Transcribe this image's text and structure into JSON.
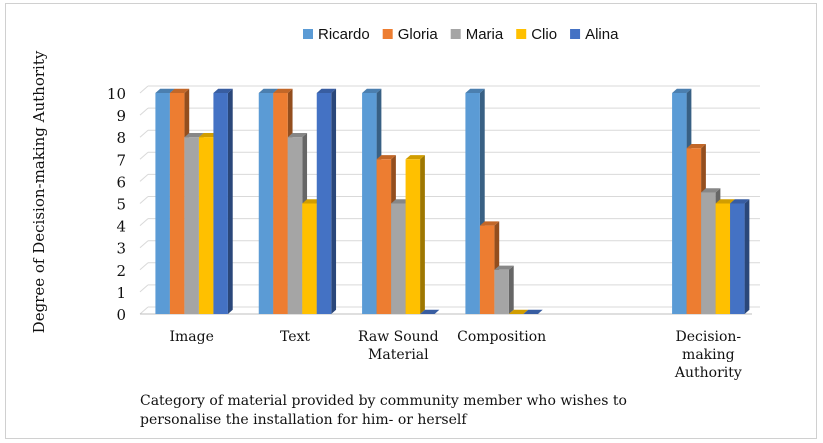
{
  "chart_data": {
    "type": "bar",
    "title": "",
    "xlabel": "Category of material provided by community member who wishes to personalise the installation for him- or herself",
    "xlabel_lines": [
      "Category of material provided by community member who wishes to",
      "personalise  the installation  for him- or herself"
    ],
    "ylabel": "Degree of Decision-making Authority",
    "ylim": [
      0,
      10
    ],
    "yticks": [
      0,
      1,
      2,
      3,
      4,
      5,
      6,
      7,
      8,
      9,
      10
    ],
    "grid": true,
    "legend_position": "top-center",
    "categories": [
      [
        "Image"
      ],
      [
        "Text"
      ],
      [
        "Raw Sound",
        "Material"
      ],
      [
        "Composition"
      ],
      [
        ""
      ],
      [
        "Decision-",
        "making",
        "Authority"
      ]
    ],
    "series": [
      {
        "name": "Ricardo",
        "color": "#5b9bd5",
        "values": [
          10,
          10,
          10,
          10,
          null,
          10
        ]
      },
      {
        "name": "Gloria",
        "color": "#ed7d31",
        "values": [
          10,
          10,
          7,
          4,
          null,
          7.5
        ]
      },
      {
        "name": "Maria",
        "color": "#a5a5a5",
        "values": [
          8,
          8,
          5,
          2,
          null,
          5.5
        ]
      },
      {
        "name": "Clio",
        "color": "#ffc000",
        "values": [
          8,
          5,
          7,
          0,
          null,
          5
        ]
      },
      {
        "name": "Alina",
        "color": "#4472c4",
        "values": [
          10,
          10,
          0,
          0,
          null,
          5
        ]
      }
    ]
  }
}
